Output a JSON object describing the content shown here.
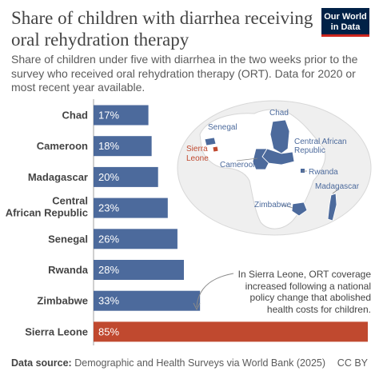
{
  "header": {
    "title": "Share of children with diarrhea receiving oral rehydration therapy",
    "subtitle": "Share of children under five with diarrhea in the two weeks prior to the survey who received oral rehydration therapy (ORT). Data for 2020 or most recent year available.",
    "logo_line1": "Our World",
    "logo_line2": "in Data"
  },
  "chart_data": {
    "type": "bar",
    "orientation": "horizontal",
    "categories": [
      "Chad",
      "Cameroon",
      "Madagascar",
      "Central African Republic",
      "Senegal",
      "Rwanda",
      "Zimbabwe",
      "Sierra Leone"
    ],
    "values": [
      17,
      18,
      20,
      23,
      26,
      28,
      33,
      85
    ],
    "value_labels": [
      "17%",
      "18%",
      "20%",
      "23%",
      "26%",
      "28%",
      "33%",
      "85%"
    ],
    "unit": "%",
    "xlim": [
      0,
      85
    ],
    "colors": [
      "#4c6a9c",
      "#4c6a9c",
      "#4c6a9c",
      "#4c6a9c",
      "#4c6a9c",
      "#4c6a9c",
      "#4c6a9c",
      "#c0492f"
    ],
    "highlight": "Sierra Leone",
    "annotation": "In Sierra Leone, ORT coverage increased following a national policy change that abolished health costs for children.",
    "map_labels": [
      "Chad",
      "Senegal",
      "Sierra Leone",
      "Central African Republic",
      "Cameroon",
      "Rwanda",
      "Madagascar",
      "Zimbabwe"
    ],
    "grid": false
  },
  "footer": {
    "source_label": "Data source:",
    "source_text": "Demographic and Health Surveys via World Bank (2025)",
    "license": "CC BY"
  }
}
